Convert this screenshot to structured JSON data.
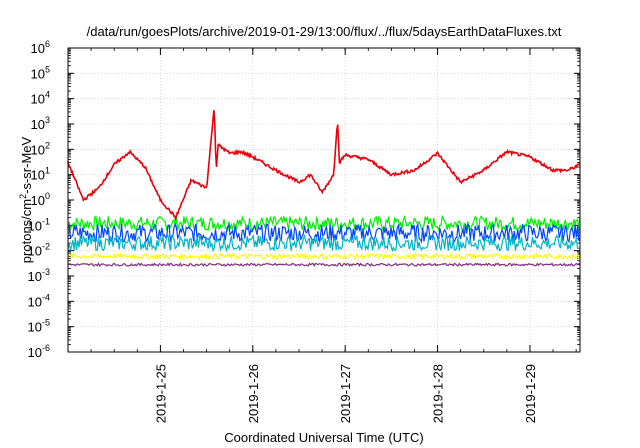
{
  "chart_data": {
    "type": "line",
    "title": "/data/run/goesPlots/archive/2019-01-29/13:00/flux/../flux/5daysEarthDataFluxes.txt",
    "xlabel": "Coordinated Universal Time (UTC)",
    "ylabel": {
      "pre": "protons/cm",
      "sup": "2",
      "post": "-s-sr-MeV"
    },
    "y_scale": "log",
    "ylim": [
      "1e-6",
      "1e6"
    ],
    "yticks": [
      {
        "base": "10",
        "exp": "-6"
      },
      {
        "base": "10",
        "exp": "-5"
      },
      {
        "base": "10",
        "exp": "-4"
      },
      {
        "base": "10",
        "exp": "-3"
      },
      {
        "base": "10",
        "exp": "-2"
      },
      {
        "base": "10",
        "exp": "-1"
      },
      {
        "base": "10",
        "exp": "0"
      },
      {
        "base": "10",
        "exp": "1"
      },
      {
        "base": "10",
        "exp": "2"
      },
      {
        "base": "10",
        "exp": "3"
      },
      {
        "base": "10",
        "exp": "4"
      },
      {
        "base": "10",
        "exp": "5"
      },
      {
        "base": "10",
        "exp": "6"
      }
    ],
    "xlim": [
      "2019-01-24 00:00",
      "2019-01-29 13:00"
    ],
    "xticks": [
      "2019-1-25",
      "2019-1-26",
      "2019-1-27",
      "2019-1-28",
      "2019-1-29"
    ],
    "x_minor_ticks_per_day": 4,
    "grid": true,
    "series": [
      {
        "color": "#e8000b",
        "x": [
          "2019-01-24 00:00",
          "2019-01-24 04:00",
          "2019-01-24 08:00",
          "2019-01-24 12:00",
          "2019-01-24 16:00",
          "2019-01-24 20:00",
          "2019-01-25 00:00",
          "2019-01-25 04:00",
          "2019-01-25 08:00",
          "2019-01-25 12:00",
          "2019-01-25 14:00",
          "2019-01-25 14:30",
          "2019-01-25 15:00",
          "2019-01-25 18:00",
          "2019-01-25 21:00",
          "2019-01-26 00:00",
          "2019-01-26 06:00",
          "2019-01-26 12:00",
          "2019-01-26 15:00",
          "2019-01-26 18:00",
          "2019-01-26 21:00",
          "2019-01-26 22:00",
          "2019-01-26 22:30",
          "2019-01-27 00:00",
          "2019-01-27 06:00",
          "2019-01-27 12:00",
          "2019-01-27 18:00",
          "2019-01-28 00:00",
          "2019-01-28 06:00",
          "2019-01-28 12:00",
          "2019-01-28 18:00",
          "2019-01-29 00:00",
          "2019-01-29 06:00",
          "2019-01-29 10:00",
          "2019-01-29 13:00"
        ],
        "values": [
          30,
          1.0,
          3,
          25,
          80,
          20,
          1.0,
          0.2,
          6,
          3,
          5000,
          15,
          150,
          70,
          80,
          50,
          15,
          5,
          10,
          2,
          10,
          1500,
          30,
          60,
          40,
          10,
          15,
          70,
          5,
          15,
          80,
          50,
          15,
          15,
          25
        ]
      },
      {
        "color": "#00ee00",
        "level": 0.12
      },
      {
        "color": "#0044ff",
        "level": 0.05
      },
      {
        "color": "#00b4c8",
        "level": 0.02
      },
      {
        "color": "#ffff00",
        "level": 0.006
      },
      {
        "color": "#7a2f7a",
        "level": 0.0028
      }
    ]
  }
}
